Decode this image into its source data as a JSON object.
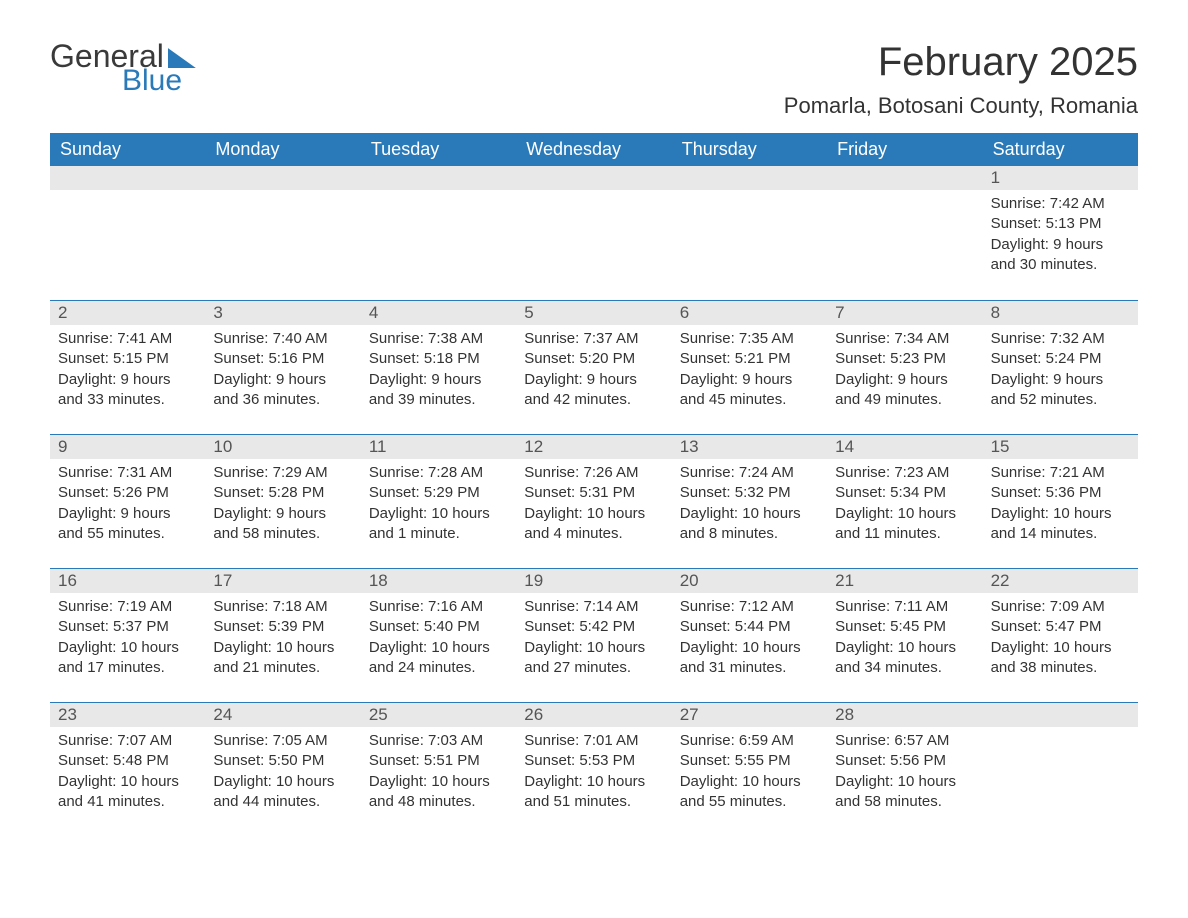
{
  "logo": {
    "text1": "General",
    "text2": "Blue"
  },
  "title": "February 2025",
  "location": "Pomarla, Botosani County, Romania",
  "colors": {
    "header_bg": "#2a7ab9",
    "header_text": "#ffffff",
    "daynum_bg": "#e8e8e8",
    "text": "#333333",
    "border": "#2a7ab9",
    "page_bg": "#ffffff"
  },
  "weekdays": [
    "Sunday",
    "Monday",
    "Tuesday",
    "Wednesday",
    "Thursday",
    "Friday",
    "Saturday"
  ],
  "weeks": [
    [
      null,
      null,
      null,
      null,
      null,
      null,
      {
        "n": "1",
        "sr": "7:42 AM",
        "ss": "5:13 PM",
        "dl": "9 hours and 30 minutes."
      }
    ],
    [
      {
        "n": "2",
        "sr": "7:41 AM",
        "ss": "5:15 PM",
        "dl": "9 hours and 33 minutes."
      },
      {
        "n": "3",
        "sr": "7:40 AM",
        "ss": "5:16 PM",
        "dl": "9 hours and 36 minutes."
      },
      {
        "n": "4",
        "sr": "7:38 AM",
        "ss": "5:18 PM",
        "dl": "9 hours and 39 minutes."
      },
      {
        "n": "5",
        "sr": "7:37 AM",
        "ss": "5:20 PM",
        "dl": "9 hours and 42 minutes."
      },
      {
        "n": "6",
        "sr": "7:35 AM",
        "ss": "5:21 PM",
        "dl": "9 hours and 45 minutes."
      },
      {
        "n": "7",
        "sr": "7:34 AM",
        "ss": "5:23 PM",
        "dl": "9 hours and 49 minutes."
      },
      {
        "n": "8",
        "sr": "7:32 AM",
        "ss": "5:24 PM",
        "dl": "9 hours and 52 minutes."
      }
    ],
    [
      {
        "n": "9",
        "sr": "7:31 AM",
        "ss": "5:26 PM",
        "dl": "9 hours and 55 minutes."
      },
      {
        "n": "10",
        "sr": "7:29 AM",
        "ss": "5:28 PM",
        "dl": "9 hours and 58 minutes."
      },
      {
        "n": "11",
        "sr": "7:28 AM",
        "ss": "5:29 PM",
        "dl": "10 hours and 1 minute."
      },
      {
        "n": "12",
        "sr": "7:26 AM",
        "ss": "5:31 PM",
        "dl": "10 hours and 4 minutes."
      },
      {
        "n": "13",
        "sr": "7:24 AM",
        "ss": "5:32 PM",
        "dl": "10 hours and 8 minutes."
      },
      {
        "n": "14",
        "sr": "7:23 AM",
        "ss": "5:34 PM",
        "dl": "10 hours and 11 minutes."
      },
      {
        "n": "15",
        "sr": "7:21 AM",
        "ss": "5:36 PM",
        "dl": "10 hours and 14 minutes."
      }
    ],
    [
      {
        "n": "16",
        "sr": "7:19 AM",
        "ss": "5:37 PM",
        "dl": "10 hours and 17 minutes."
      },
      {
        "n": "17",
        "sr": "7:18 AM",
        "ss": "5:39 PM",
        "dl": "10 hours and 21 minutes."
      },
      {
        "n": "18",
        "sr": "7:16 AM",
        "ss": "5:40 PM",
        "dl": "10 hours and 24 minutes."
      },
      {
        "n": "19",
        "sr": "7:14 AM",
        "ss": "5:42 PM",
        "dl": "10 hours and 27 minutes."
      },
      {
        "n": "20",
        "sr": "7:12 AM",
        "ss": "5:44 PM",
        "dl": "10 hours and 31 minutes."
      },
      {
        "n": "21",
        "sr": "7:11 AM",
        "ss": "5:45 PM",
        "dl": "10 hours and 34 minutes."
      },
      {
        "n": "22",
        "sr": "7:09 AM",
        "ss": "5:47 PM",
        "dl": "10 hours and 38 minutes."
      }
    ],
    [
      {
        "n": "23",
        "sr": "7:07 AM",
        "ss": "5:48 PM",
        "dl": "10 hours and 41 minutes."
      },
      {
        "n": "24",
        "sr": "7:05 AM",
        "ss": "5:50 PM",
        "dl": "10 hours and 44 minutes."
      },
      {
        "n": "25",
        "sr": "7:03 AM",
        "ss": "5:51 PM",
        "dl": "10 hours and 48 minutes."
      },
      {
        "n": "26",
        "sr": "7:01 AM",
        "ss": "5:53 PM",
        "dl": "10 hours and 51 minutes."
      },
      {
        "n": "27",
        "sr": "6:59 AM",
        "ss": "5:55 PM",
        "dl": "10 hours and 55 minutes."
      },
      {
        "n": "28",
        "sr": "6:57 AM",
        "ss": "5:56 PM",
        "dl": "10 hours and 58 minutes."
      },
      null
    ]
  ],
  "labels": {
    "sunrise": "Sunrise: ",
    "sunset": "Sunset: ",
    "daylight": "Daylight: "
  }
}
